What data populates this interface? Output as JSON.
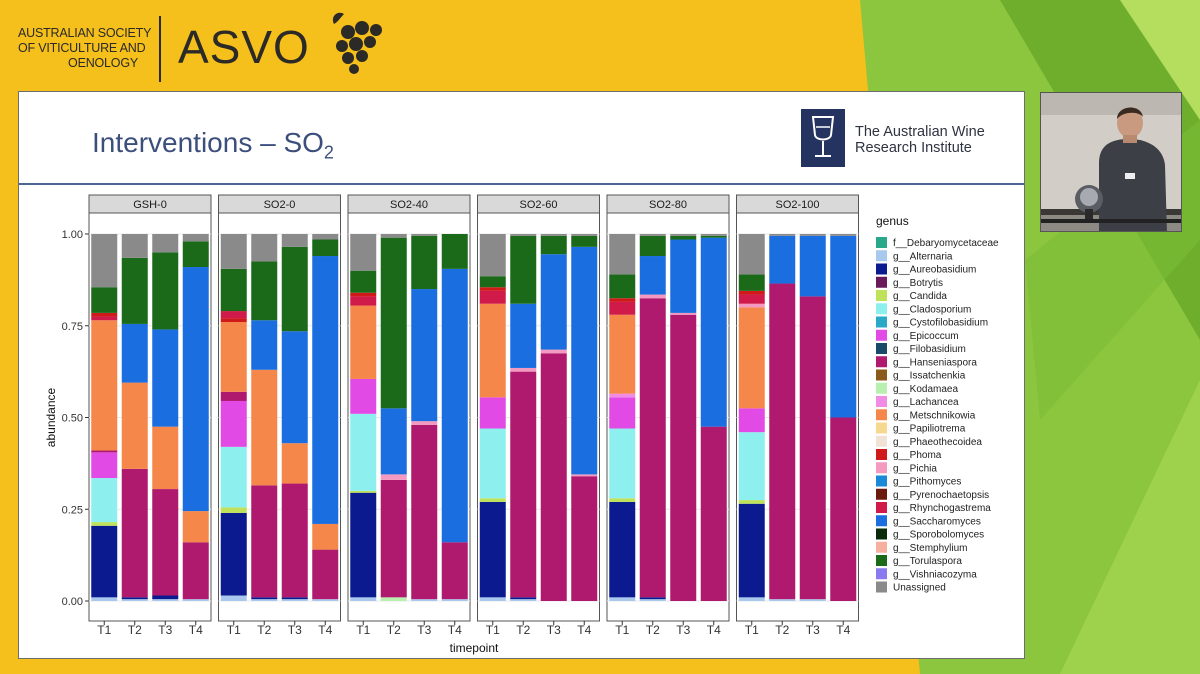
{
  "header": {
    "society_lines": [
      "AUSTRALIAN SOCIETY",
      "OF VITICULTURE AND",
      "OENOLOGY"
    ],
    "acronym": "ASVO"
  },
  "slide": {
    "title_main": "Interventions – SO",
    "title_sub": "2",
    "institute_lines": [
      "The Australian Wine",
      "Research Institute"
    ]
  },
  "colors": {
    "background_yellow": "#f5bf1c",
    "background_green": "#8cc63f",
    "title_blue": "#3c4f7c",
    "awri_navy": "#24335f"
  },
  "chart_data": {
    "type": "bar",
    "subtype": "stacked-faceted",
    "xlabel": "timepoint",
    "ylabel": "abundance",
    "ylim": [
      0,
      1
    ],
    "yticks": [
      "0.00",
      "0.25",
      "0.50",
      "0.75",
      "1.00"
    ],
    "categories": [
      "T1",
      "T2",
      "T3",
      "T4"
    ],
    "grid": true,
    "legend_title": "genus",
    "legend_position": "right",
    "legend": [
      {
        "name": "f__Debaryomycetaceae",
        "color": "#2aa88c"
      },
      {
        "name": "g__Alternaria",
        "color": "#a8c8ee"
      },
      {
        "name": "g__Aureobasidium",
        "color": "#0c1a8f"
      },
      {
        "name": "g__Botrytis",
        "color": "#6a1a5a"
      },
      {
        "name": "g__Candida",
        "color": "#bfe25a"
      },
      {
        "name": "g__Cladosporium",
        "color": "#8ef0ee"
      },
      {
        "name": "g__Cystofilobasidium",
        "color": "#2aa8c8"
      },
      {
        "name": "g__Epicoccum",
        "color": "#e24ae6"
      },
      {
        "name": "g__Filobasidium",
        "color": "#1a4a6a"
      },
      {
        "name": "g__Hanseniaspora",
        "color": "#b01a6e"
      },
      {
        "name": "g__Issatchenkia",
        "color": "#8a5a1a"
      },
      {
        "name": "g__Kodamaea",
        "color": "#b8f0b0"
      },
      {
        "name": "g__Lachancea",
        "color": "#f08ce6"
      },
      {
        "name": "g__Metschnikowia",
        "color": "#f6874a"
      },
      {
        "name": "g__Papiliotrema",
        "color": "#f6d890"
      },
      {
        "name": "g__Phaeothecoidea",
        "color": "#f0e2d4"
      },
      {
        "name": "g__Phoma",
        "color": "#d01a1a"
      },
      {
        "name": "g__Pichia",
        "color": "#f49ac0"
      },
      {
        "name": "g__Pithomyces",
        "color": "#1a8ad8"
      },
      {
        "name": "g__Pyrenochaetopsis",
        "color": "#6a1a0a"
      },
      {
        "name": "g__Rhynchogastrema",
        "color": "#d01a4a"
      },
      {
        "name": "g__Saccharomyces",
        "color": "#1a6ee0"
      },
      {
        "name": "g__Sporobolomyces",
        "color": "#0a2a0a"
      },
      {
        "name": "g__Stemphylium",
        "color": "#f6b0a0"
      },
      {
        "name": "g__Torulaspora",
        "color": "#1a6a1a"
      },
      {
        "name": "g__Vishniacozyma",
        "color": "#8a7af0"
      },
      {
        "name": "Unassigned",
        "color": "#8a8a8a"
      }
    ],
    "facets": [
      {
        "label": "GSH-0",
        "bars": [
          {
            "x": "T1",
            "segments": [
              [
                "g__Alternaria",
                0.01
              ],
              [
                "g__Aureobasidium",
                0.195
              ],
              [
                "g__Candida",
                0.01
              ],
              [
                "g__Cladosporium",
                0.12
              ],
              [
                "g__Epicoccum",
                0.07
              ],
              [
                "g__Hanseniaspora",
                0.005
              ],
              [
                "g__Metschnikowia",
                0.355
              ],
              [
                "g__Rhynchogastrema",
                0.01
              ],
              [
                "g__Phoma",
                0.01
              ],
              [
                "g__Torulaspora",
                0.07
              ],
              [
                "Unassigned",
                0.145
              ]
            ]
          },
          {
            "x": "T2",
            "segments": [
              [
                "g__Alternaria",
                0.005
              ],
              [
                "g__Aureobasidium",
                0.005
              ],
              [
                "g__Hanseniaspora",
                0.35
              ],
              [
                "g__Metschnikowia",
                0.235
              ],
              [
                "g__Saccharomyces",
                0.16
              ],
              [
                "g__Torulaspora",
                0.18
              ],
              [
                "Unassigned",
                0.065
              ]
            ]
          },
          {
            "x": "T3",
            "segments": [
              [
                "g__Alternaria",
                0.005
              ],
              [
                "g__Aureobasidium",
                0.01
              ],
              [
                "g__Hanseniaspora",
                0.29
              ],
              [
                "g__Metschnikowia",
                0.17
              ],
              [
                "g__Saccharomyces",
                0.265
              ],
              [
                "g__Torulaspora",
                0.21
              ],
              [
                "Unassigned",
                0.05
              ]
            ]
          },
          {
            "x": "T4",
            "segments": [
              [
                "g__Alternaria",
                0.005
              ],
              [
                "g__Hanseniaspora",
                0.155
              ],
              [
                "g__Metschnikowia",
                0.085
              ],
              [
                "g__Saccharomyces",
                0.665
              ],
              [
                "g__Torulaspora",
                0.07
              ],
              [
                "Unassigned",
                0.02
              ]
            ]
          }
        ]
      },
      {
        "label": "SO2-0",
        "bars": [
          {
            "x": "T1",
            "segments": [
              [
                "g__Alternaria",
                0.015
              ],
              [
                "g__Aureobasidium",
                0.225
              ],
              [
                "g__Candida",
                0.015
              ],
              [
                "g__Cladosporium",
                0.165
              ],
              [
                "g__Epicoccum",
                0.125
              ],
              [
                "g__Hanseniaspora",
                0.025
              ],
              [
                "g__Metschnikowia",
                0.19
              ],
              [
                "g__Phoma",
                0.01
              ],
              [
                "g__Rhynchogastrema",
                0.02
              ],
              [
                "g__Torulaspora",
                0.115
              ],
              [
                "Unassigned",
                0.095
              ]
            ]
          },
          {
            "x": "T2",
            "segments": [
              [
                "g__Alternaria",
                0.005
              ],
              [
                "g__Aureobasidium",
                0.005
              ],
              [
                "g__Hanseniaspora",
                0.305
              ],
              [
                "g__Metschnikowia",
                0.315
              ],
              [
                "g__Saccharomyces",
                0.135
              ],
              [
                "g__Torulaspora",
                0.16
              ],
              [
                "Unassigned",
                0.075
              ]
            ]
          },
          {
            "x": "T3",
            "segments": [
              [
                "g__Alternaria",
                0.005
              ],
              [
                "g__Aureobasidium",
                0.005
              ],
              [
                "g__Hanseniaspora",
                0.31
              ],
              [
                "g__Metschnikowia",
                0.11
              ],
              [
                "g__Saccharomyces",
                0.305
              ],
              [
                "g__Torulaspora",
                0.23
              ],
              [
                "Unassigned",
                0.035
              ]
            ]
          },
          {
            "x": "T4",
            "segments": [
              [
                "g__Alternaria",
                0.005
              ],
              [
                "g__Hanseniaspora",
                0.135
              ],
              [
                "g__Metschnikowia",
                0.07
              ],
              [
                "g__Saccharomyces",
                0.73
              ],
              [
                "g__Torulaspora",
                0.045
              ],
              [
                "Unassigned",
                0.015
              ]
            ]
          }
        ]
      },
      {
        "label": "SO2-40",
        "bars": [
          {
            "x": "T1",
            "segments": [
              [
                "g__Alternaria",
                0.01
              ],
              [
                "g__Aureobasidium",
                0.285
              ],
              [
                "g__Candida",
                0.005
              ],
              [
                "g__Cladosporium",
                0.21
              ],
              [
                "g__Epicoccum",
                0.095
              ],
              [
                "g__Metschnikowia",
                0.2
              ],
              [
                "g__Rhynchogastrema",
                0.025
              ],
              [
                "g__Phoma",
                0.01
              ],
              [
                "g__Torulaspora",
                0.06
              ],
              [
                "Unassigned",
                0.1
              ]
            ]
          },
          {
            "x": "T2",
            "segments": [
              [
                "g__Kodamaea",
                0.01
              ],
              [
                "g__Hanseniaspora",
                0.32
              ],
              [
                "g__Pichia",
                0.015
              ],
              [
                "g__Saccharomyces",
                0.18
              ],
              [
                "g__Torulaspora",
                0.465
              ],
              [
                "Unassigned",
                0.01
              ]
            ]
          },
          {
            "x": "T3",
            "segments": [
              [
                "g__Alternaria",
                0.005
              ],
              [
                "g__Hanseniaspora",
                0.475
              ],
              [
                "g__Pichia",
                0.01
              ],
              [
                "g__Saccharomyces",
                0.36
              ],
              [
                "g__Torulaspora",
                0.145
              ],
              [
                "Unassigned",
                0.005
              ]
            ]
          },
          {
            "x": "T4",
            "segments": [
              [
                "g__Alternaria",
                0.005
              ],
              [
                "g__Hanseniaspora",
                0.155
              ],
              [
                "g__Saccharomyces",
                0.745
              ],
              [
                "g__Torulaspora",
                0.095
              ]
            ]
          }
        ]
      },
      {
        "label": "SO2-60",
        "bars": [
          {
            "x": "T1",
            "segments": [
              [
                "g__Alternaria",
                0.01
              ],
              [
                "g__Aureobasidium",
                0.26
              ],
              [
                "g__Candida",
                0.01
              ],
              [
                "g__Cladosporium",
                0.19
              ],
              [
                "g__Epicoccum",
                0.085
              ],
              [
                "g__Metschnikowia",
                0.255
              ],
              [
                "g__Rhynchogastrema",
                0.035
              ],
              [
                "g__Phoma",
                0.01
              ],
              [
                "g__Torulaspora",
                0.03
              ],
              [
                "Unassigned",
                0.115
              ]
            ]
          },
          {
            "x": "T2",
            "segments": [
              [
                "g__Alternaria",
                0.005
              ],
              [
                "g__Aureobasidium",
                0.005
              ],
              [
                "g__Hanseniaspora",
                0.615
              ],
              [
                "g__Pichia",
                0.01
              ],
              [
                "g__Saccharomyces",
                0.175
              ],
              [
                "g__Torulaspora",
                0.185
              ],
              [
                "Unassigned",
                0.005
              ]
            ]
          },
          {
            "x": "T3",
            "segments": [
              [
                "g__Hanseniaspora",
                0.675
              ],
              [
                "g__Pichia",
                0.01
              ],
              [
                "g__Saccharomyces",
                0.26
              ],
              [
                "g__Torulaspora",
                0.05
              ],
              [
                "Unassigned",
                0.005
              ]
            ]
          },
          {
            "x": "T4",
            "segments": [
              [
                "g__Hanseniaspora",
                0.34
              ],
              [
                "g__Pichia",
                0.005
              ],
              [
                "g__Saccharomyces",
                0.62
              ],
              [
                "g__Torulaspora",
                0.03
              ],
              [
                "Unassigned",
                0.005
              ]
            ]
          }
        ]
      },
      {
        "label": "SO2-80",
        "bars": [
          {
            "x": "T1",
            "segments": [
              [
                "g__Alternaria",
                0.01
              ],
              [
                "g__Aureobasidium",
                0.26
              ],
              [
                "g__Candida",
                0.01
              ],
              [
                "g__Cladosporium",
                0.19
              ],
              [
                "g__Epicoccum",
                0.085
              ],
              [
                "g__Lachancea",
                0.01
              ],
              [
                "g__Metschnikowia",
                0.215
              ],
              [
                "g__Rhynchogastrema",
                0.035
              ],
              [
                "g__Phoma",
                0.01
              ],
              [
                "g__Torulaspora",
                0.065
              ],
              [
                "Unassigned",
                0.11
              ]
            ]
          },
          {
            "x": "T2",
            "segments": [
              [
                "g__Alternaria",
                0.005
              ],
              [
                "g__Aureobasidium",
                0.005
              ],
              [
                "g__Hanseniaspora",
                0.815
              ],
              [
                "g__Pichia",
                0.01
              ],
              [
                "g__Saccharomyces",
                0.105
              ],
              [
                "g__Torulaspora",
                0.055
              ],
              [
                "Unassigned",
                0.005
              ]
            ]
          },
          {
            "x": "T3",
            "segments": [
              [
                "g__Hanseniaspora",
                0.78
              ],
              [
                "g__Pichia",
                0.005
              ],
              [
                "g__Saccharomyces",
                0.2
              ],
              [
                "g__Torulaspora",
                0.01
              ],
              [
                "Unassigned",
                0.005
              ]
            ]
          },
          {
            "x": "T4",
            "segments": [
              [
                "g__Hanseniaspora",
                0.475
              ],
              [
                "g__Saccharomyces",
                0.515
              ],
              [
                "g__Torulaspora",
                0.005
              ],
              [
                "Unassigned",
                0.005
              ]
            ]
          }
        ]
      },
      {
        "label": "SO2-100",
        "bars": [
          {
            "x": "T1",
            "segments": [
              [
                "g__Alternaria",
                0.01
              ],
              [
                "g__Aureobasidium",
                0.255
              ],
              [
                "g__Candida",
                0.01
              ],
              [
                "g__Cladosporium",
                0.185
              ],
              [
                "g__Epicoccum",
                0.065
              ],
              [
                "g__Metschnikowia",
                0.275
              ],
              [
                "g__Pichia",
                0.01
              ],
              [
                "g__Rhynchogastrema",
                0.025
              ],
              [
                "g__Phoma",
                0.01
              ],
              [
                "g__Torulaspora",
                0.045
              ],
              [
                "Unassigned",
                0.11
              ]
            ]
          },
          {
            "x": "T2",
            "segments": [
              [
                "g__Alternaria",
                0.005
              ],
              [
                "g__Hanseniaspora",
                0.86
              ],
              [
                "g__Saccharomyces",
                0.13
              ],
              [
                "Unassigned",
                0.005
              ]
            ]
          },
          {
            "x": "T3",
            "segments": [
              [
                "g__Alternaria",
                0.005
              ],
              [
                "g__Hanseniaspora",
                0.825
              ],
              [
                "g__Saccharomyces",
                0.165
              ],
              [
                "Unassigned",
                0.005
              ]
            ]
          },
          {
            "x": "T4",
            "segments": [
              [
                "g__Hanseniaspora",
                0.5
              ],
              [
                "g__Saccharomyces",
                0.495
              ],
              [
                "Unassigned",
                0.005
              ]
            ]
          }
        ]
      }
    ]
  }
}
